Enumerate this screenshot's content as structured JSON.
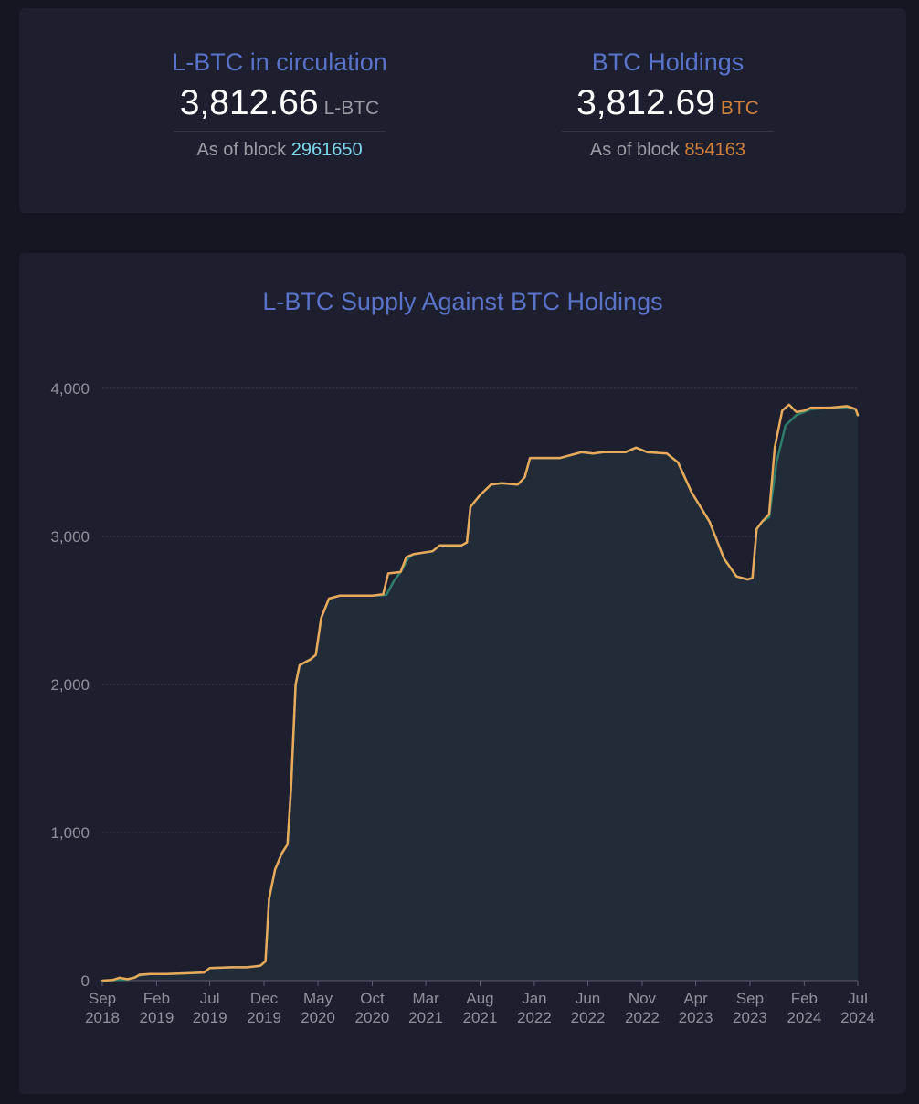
{
  "stats": {
    "lbtc": {
      "title": "L-BTC in circulation",
      "value": "3,812.66",
      "unit": "L-BTC",
      "block_prefix": "As of block",
      "block": "2961650"
    },
    "btc": {
      "title": "BTC Holdings",
      "value": "3,812.69",
      "unit": "BTC",
      "block_prefix": "As of block",
      "block": "854163"
    }
  },
  "colors": {
    "background": "#141621",
    "card": "#1d1f2f",
    "accent_title": "#5a73c9",
    "btc_line": "#e8a95a",
    "lbtc_line": "#2e7d6b",
    "area_fill": "#222c38",
    "block_lbtc": "#7fd9ec",
    "block_btc": "#d07f3a"
  },
  "chart_data": {
    "type": "area",
    "title": "L-BTC Supply Against BTC Holdings",
    "xlabel": "",
    "ylabel": "",
    "ylim": [
      0,
      4000
    ],
    "y_ticks": [
      0,
      1000,
      2000,
      3000,
      4000
    ],
    "y_tick_labels": [
      "0",
      "1,000",
      "2,000",
      "3,000",
      "4,000"
    ],
    "x_ticks": [
      {
        "date": "2018-09-01",
        "label": [
          "Sep",
          "2018"
        ]
      },
      {
        "date": "2019-02-01",
        "label": [
          "Feb",
          "2019"
        ]
      },
      {
        "date": "2019-07-01",
        "label": [
          "Jul",
          "2019"
        ]
      },
      {
        "date": "2019-12-01",
        "label": [
          "Dec",
          "2019"
        ]
      },
      {
        "date": "2020-05-01",
        "label": [
          "May",
          "2020"
        ]
      },
      {
        "date": "2020-10-01",
        "label": [
          "Oct",
          "2020"
        ]
      },
      {
        "date": "2021-03-01",
        "label": [
          "Mar",
          "2021"
        ]
      },
      {
        "date": "2021-08-01",
        "label": [
          "Aug",
          "2021"
        ]
      },
      {
        "date": "2022-01-01",
        "label": [
          "Jan",
          "2022"
        ]
      },
      {
        "date": "2022-06-01",
        "label": [
          "Jun",
          "2022"
        ]
      },
      {
        "date": "2022-11-01",
        "label": [
          "Nov",
          "2022"
        ]
      },
      {
        "date": "2023-04-01",
        "label": [
          "Apr",
          "2023"
        ]
      },
      {
        "date": "2023-09-01",
        "label": [
          "Sep",
          "2023"
        ]
      },
      {
        "date": "2024-02-01",
        "label": [
          "Feb",
          "2024"
        ]
      },
      {
        "date": "2024-07-01",
        "label": [
          "Jul",
          "2024"
        ]
      }
    ],
    "grid": true,
    "legend": "none",
    "series": [
      {
        "key": "btc",
        "color": "#e8a95a",
        "points": [
          [
            "2018-09-01",
            0
          ],
          [
            "2018-10-01",
            5
          ],
          [
            "2018-10-20",
            20
          ],
          [
            "2018-11-10",
            10
          ],
          [
            "2018-12-01",
            20
          ],
          [
            "2018-12-15",
            40
          ],
          [
            "2019-01-15",
            45
          ],
          [
            "2019-03-01",
            45
          ],
          [
            "2019-05-01",
            50
          ],
          [
            "2019-06-15",
            55
          ],
          [
            "2019-07-01",
            85
          ],
          [
            "2019-09-01",
            90
          ],
          [
            "2019-10-15",
            90
          ],
          [
            "2019-11-20",
            100
          ],
          [
            "2019-12-05",
            130
          ],
          [
            "2019-12-15",
            550
          ],
          [
            "2020-01-01",
            750
          ],
          [
            "2020-01-20",
            860
          ],
          [
            "2020-02-05",
            920
          ],
          [
            "2020-02-15",
            1300
          ],
          [
            "2020-02-28",
            2000
          ],
          [
            "2020-03-10",
            2130
          ],
          [
            "2020-04-10",
            2170
          ],
          [
            "2020-04-25",
            2200
          ],
          [
            "2020-05-10",
            2450
          ],
          [
            "2020-06-01",
            2580
          ],
          [
            "2020-07-01",
            2600
          ],
          [
            "2020-10-01",
            2600
          ],
          [
            "2020-11-01",
            2610
          ],
          [
            "2020-11-15",
            2750
          ],
          [
            "2020-12-20",
            2760
          ],
          [
            "2021-01-05",
            2860
          ],
          [
            "2021-01-25",
            2880
          ],
          [
            "2021-03-20",
            2900
          ],
          [
            "2021-04-10",
            2940
          ],
          [
            "2021-06-10",
            2940
          ],
          [
            "2021-06-25",
            2960
          ],
          [
            "2021-07-05",
            3200
          ],
          [
            "2021-08-01",
            3280
          ],
          [
            "2021-09-01",
            3350
          ],
          [
            "2021-10-01",
            3360
          ],
          [
            "2021-11-15",
            3350
          ],
          [
            "2021-12-05",
            3400
          ],
          [
            "2021-12-20",
            3530
          ],
          [
            "2022-02-01",
            3530
          ],
          [
            "2022-03-15",
            3530
          ],
          [
            "2022-05-15",
            3570
          ],
          [
            "2022-06-15",
            3560
          ],
          [
            "2022-07-15",
            3570
          ],
          [
            "2022-09-15",
            3570
          ],
          [
            "2022-10-15",
            3600
          ],
          [
            "2022-11-15",
            3570
          ],
          [
            "2023-01-10",
            3560
          ],
          [
            "2023-02-10",
            3500
          ],
          [
            "2023-03-20",
            3300
          ],
          [
            "2023-05-10",
            3100
          ],
          [
            "2023-06-20",
            2850
          ],
          [
            "2023-07-25",
            2730
          ],
          [
            "2023-08-25",
            2710
          ],
          [
            "2023-09-08",
            2720
          ],
          [
            "2023-09-20",
            3050
          ],
          [
            "2023-10-05",
            3100
          ],
          [
            "2023-10-25",
            3150
          ],
          [
            "2023-11-10",
            3600
          ],
          [
            "2023-12-01",
            3850
          ],
          [
            "2023-12-20",
            3890
          ],
          [
            "2024-01-10",
            3840
          ],
          [
            "2024-02-01",
            3850
          ],
          [
            "2024-02-20",
            3870
          ],
          [
            "2024-04-15",
            3870
          ],
          [
            "2024-06-01",
            3880
          ],
          [
            "2024-06-25",
            3860
          ],
          [
            "2024-07-01",
            3820
          ]
        ]
      },
      {
        "key": "lbtc",
        "color": "#2e7d6b",
        "points": [
          [
            "2018-09-01",
            0
          ],
          [
            "2018-10-01",
            3
          ],
          [
            "2018-11-10",
            6
          ],
          [
            "2018-12-15",
            35
          ],
          [
            "2019-01-15",
            45
          ],
          [
            "2019-03-01",
            45
          ],
          [
            "2019-05-01",
            50
          ],
          [
            "2019-06-15",
            55
          ],
          [
            "2019-07-01",
            85
          ],
          [
            "2019-09-01",
            90
          ],
          [
            "2019-10-15",
            90
          ],
          [
            "2019-11-20",
            100
          ],
          [
            "2019-12-05",
            130
          ],
          [
            "2019-12-15",
            550
          ],
          [
            "2020-01-01",
            750
          ],
          [
            "2020-01-20",
            860
          ],
          [
            "2020-02-05",
            920
          ],
          [
            "2020-02-15",
            1300
          ],
          [
            "2020-02-28",
            2000
          ],
          [
            "2020-03-10",
            2130
          ],
          [
            "2020-04-10",
            2170
          ],
          [
            "2020-04-25",
            2200
          ],
          [
            "2020-05-10",
            2450
          ],
          [
            "2020-06-01",
            2580
          ],
          [
            "2020-07-01",
            2600
          ],
          [
            "2020-10-01",
            2600
          ],
          [
            "2020-11-10",
            2605
          ],
          [
            "2020-12-01",
            2700
          ],
          [
            "2020-12-20",
            2760
          ],
          [
            "2021-01-10",
            2850
          ],
          [
            "2021-01-25",
            2880
          ],
          [
            "2021-03-20",
            2900
          ],
          [
            "2021-04-10",
            2940
          ],
          [
            "2021-06-10",
            2940
          ],
          [
            "2021-06-25",
            2960
          ],
          [
            "2021-07-05",
            3200
          ],
          [
            "2021-08-01",
            3280
          ],
          [
            "2021-09-01",
            3350
          ],
          [
            "2021-10-01",
            3360
          ],
          [
            "2021-11-15",
            3350
          ],
          [
            "2021-12-05",
            3400
          ],
          [
            "2021-12-20",
            3530
          ],
          [
            "2022-02-01",
            3530
          ],
          [
            "2022-03-15",
            3530
          ],
          [
            "2022-05-15",
            3570
          ],
          [
            "2022-06-15",
            3560
          ],
          [
            "2022-07-15",
            3570
          ],
          [
            "2022-09-15",
            3570
          ],
          [
            "2022-10-15",
            3600
          ],
          [
            "2022-11-15",
            3570
          ],
          [
            "2023-01-10",
            3560
          ],
          [
            "2023-02-10",
            3500
          ],
          [
            "2023-03-20",
            3300
          ],
          [
            "2023-05-10",
            3100
          ],
          [
            "2023-06-20",
            2850
          ],
          [
            "2023-07-25",
            2730
          ],
          [
            "2023-08-25",
            2710
          ],
          [
            "2023-09-08",
            2720
          ],
          [
            "2023-09-20",
            3050
          ],
          [
            "2023-10-05",
            3100
          ],
          [
            "2023-10-25",
            3130
          ],
          [
            "2023-11-15",
            3500
          ],
          [
            "2023-12-10",
            3750
          ],
          [
            "2024-01-10",
            3820
          ],
          [
            "2024-02-01",
            3840
          ],
          [
            "2024-02-20",
            3860
          ],
          [
            "2024-04-15",
            3870
          ],
          [
            "2024-06-01",
            3870
          ],
          [
            "2024-06-25",
            3860
          ],
          [
            "2024-07-01",
            3812
          ]
        ]
      }
    ]
  }
}
